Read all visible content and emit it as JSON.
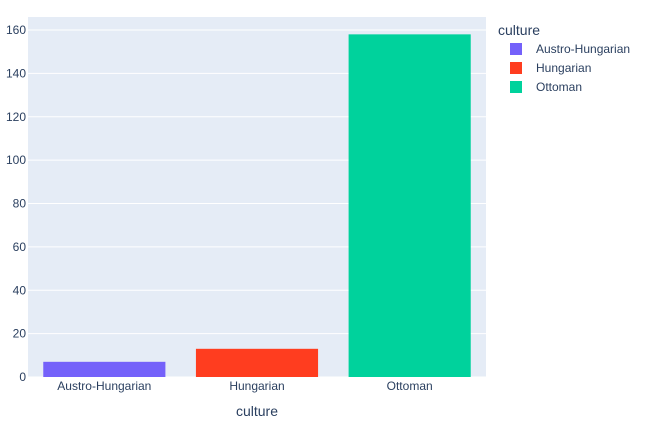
{
  "chart_data": {
    "type": "bar",
    "categories": [
      "Austro-Hungarian",
      "Hungarian",
      "Ottoman"
    ],
    "values": [
      7,
      13,
      158
    ],
    "colors": [
      "#7461fa",
      "#ff3d1f",
      "#00d29c"
    ],
    "xlabel": "culture",
    "ylabel": "",
    "ylim": [
      0,
      166
    ],
    "yticks": [
      0,
      20,
      40,
      60,
      80,
      100,
      120,
      140,
      160
    ],
    "grid": true,
    "plot_background": "#e5ecf6",
    "legend": {
      "title": "culture",
      "placement": "top-right",
      "entries": [
        "Austro-Hungarian",
        "Hungarian",
        "Ottoman"
      ]
    }
  }
}
